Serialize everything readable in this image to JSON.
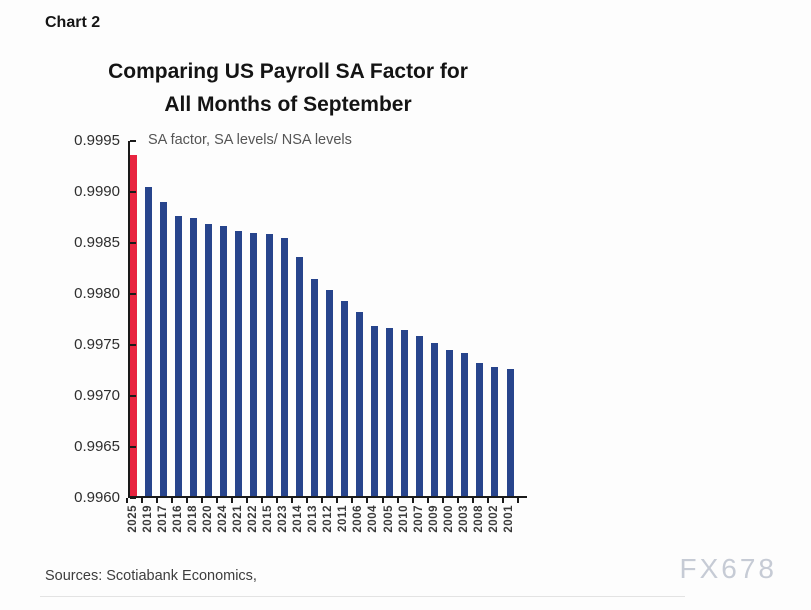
{
  "page": {
    "chart_label": "Chart 2",
    "sources": "Sources: Scotiabank Economics,",
    "watermark": "FX678"
  },
  "chart_data": {
    "type": "bar",
    "title": "Comparing US Payroll SA Factor for All Months of September",
    "title_lines": [
      "Comparing US Payroll SA Factor for",
      "All Months of September"
    ],
    "subtitle": "SA factor, SA levels/ NSA levels",
    "xlabel": "",
    "ylabel": "",
    "ylim": [
      0.996,
      0.9995
    ],
    "ytick_step": 0.0005,
    "ytick_labels": [
      "0.9995",
      "0.9990",
      "0.9985",
      "0.9980",
      "0.9975",
      "0.9970",
      "0.9965",
      "0.9960"
    ],
    "grid": false,
    "legend_position": "none",
    "categories": [
      "2025",
      "2019",
      "2017",
      "2016",
      "2018",
      "2020",
      "2024",
      "2021",
      "2022",
      "2015",
      "2023",
      "2014",
      "2013",
      "2012",
      "2011",
      "2006",
      "2004",
      "2005",
      "2010",
      "2007",
      "2009",
      "2000",
      "2003",
      "2008",
      "2002",
      "2001"
    ],
    "values": [
      0.99936,
      0.99905,
      0.9989,
      0.99876,
      0.99874,
      0.99868,
      0.99866,
      0.99861,
      0.99859,
      0.99858,
      0.99854,
      0.99836,
      0.99814,
      0.99803,
      0.99792,
      0.99781,
      0.99768,
      0.99766,
      0.99764,
      0.99758,
      0.99751,
      0.99744,
      0.99741,
      0.99731,
      0.99727,
      0.99725
    ],
    "highlight_category": "2025",
    "colors": {
      "bar": "#27448c",
      "highlight": "#e8243f",
      "axis": "#1a1a1a"
    }
  }
}
